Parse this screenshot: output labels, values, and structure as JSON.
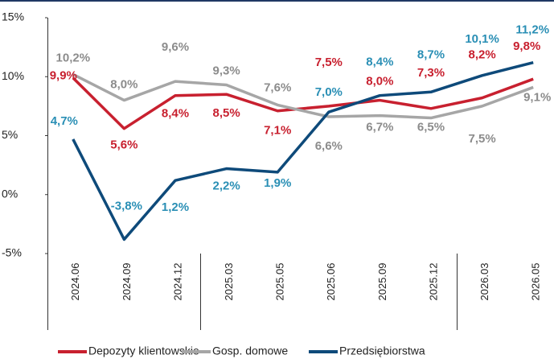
{
  "chart_data": {
    "type": "line",
    "categories": [
      "2024.06",
      "2024.09",
      "2024.12",
      "2025.03",
      "2025.05",
      "2025.06",
      "2025.09",
      "2025.12",
      "2026.03",
      "2026.05"
    ],
    "series": [
      {
        "name": "Depozyty klientowskie",
        "color": "#c8202f",
        "label_color": "#c8202f",
        "values": [
          9.9,
          5.6,
          8.4,
          8.5,
          7.1,
          7.5,
          8.0,
          7.3,
          8.2,
          9.8
        ],
        "value_labels": [
          "9,9%",
          "5,6%",
          "8,4%",
          "8,5%",
          "7,1%",
          "7,5%",
          "8,0%",
          "7,3%",
          "8,2%",
          "9,8%"
        ]
      },
      {
        "name": "Gosp. domowe",
        "color": "#a6a6a6",
        "label_color": "#8c8c8c",
        "values": [
          10.2,
          8.0,
          9.6,
          9.3,
          7.6,
          6.6,
          6.7,
          6.5,
          7.5,
          9.1
        ],
        "value_labels": [
          "10,2%",
          "8,0%",
          "9,6%",
          "9,3%",
          "7,6%",
          "6,6%",
          "6,7%",
          "6,5%",
          "7,5%",
          "9,1%"
        ]
      },
      {
        "name": "Przedsiębiorstwa",
        "color": "#0e4a7a",
        "label_color": "#2a8fb5",
        "values": [
          4.7,
          -3.8,
          1.2,
          2.2,
          1.9,
          7.0,
          8.4,
          8.7,
          10.1,
          11.2
        ],
        "value_labels": [
          "4,7%",
          "-3,8%",
          "1,2%",
          "2,2%",
          "1,9%",
          "7,0%",
          "8,4%",
          "8,7%",
          "10,1%",
          "11,2%"
        ]
      }
    ],
    "ylim": [
      -5,
      15
    ],
    "yticks": [
      {
        "value": -5,
        "label": "-5%"
      },
      {
        "value": 0,
        "label": "0%"
      },
      {
        "value": 5,
        "label": "5%"
      },
      {
        "value": 10,
        "label": "10%"
      },
      {
        "value": 15,
        "label": "15%"
      }
    ],
    "grid": false,
    "legend": "bottom"
  }
}
